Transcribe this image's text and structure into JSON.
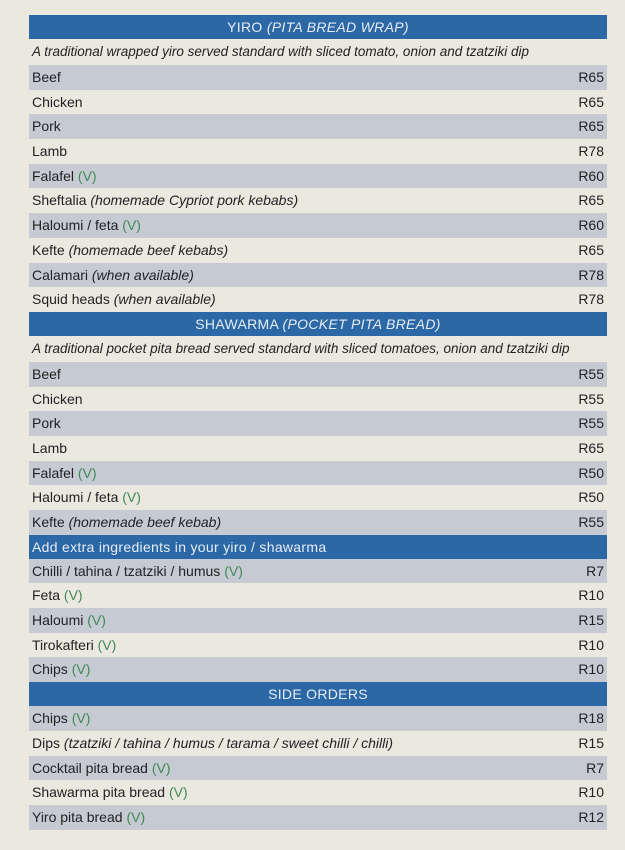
{
  "colors": {
    "header": "#2c68a6",
    "stripe": "#c6cad3",
    "veg": "#3f8a55",
    "background": "#ebe8e0"
  },
  "sections": [
    {
      "title": "YIRO",
      "title_note": "(PITA BREAD WRAP)",
      "align": "center",
      "description": "A traditional wrapped yiro served standard with sliced tomato, onion and tzatziki dip",
      "items": [
        {
          "name": "Beef",
          "price": "R65"
        },
        {
          "name": "Chicken",
          "price": "R65"
        },
        {
          "name": "Pork",
          "price": "R65"
        },
        {
          "name": "Lamb",
          "price": "R78"
        },
        {
          "name": "Falafel",
          "veg": "(V)",
          "price": "R60"
        },
        {
          "name": "Sheftalia",
          "note": "(homemade Cypriot pork kebabs)",
          "price": "R65"
        },
        {
          "name": "Haloumi / feta",
          "veg": "(V)",
          "price": "R60"
        },
        {
          "name": "Kefte",
          "note": "(homemade beef kebabs)",
          "price": "R65"
        },
        {
          "name": "Calamari",
          "note": "(when available)",
          "price": "R78"
        },
        {
          "name": "Squid heads",
          "note": "(when available)",
          "price": "R78"
        }
      ]
    },
    {
      "title": "SHAWARMA",
      "title_note": "(POCKET PITA BREAD)",
      "align": "center",
      "description": "A traditional pocket pita bread served standard with sliced tomatoes, onion and tzatziki dip",
      "items": [
        {
          "name": "Beef",
          "price": "R55"
        },
        {
          "name": "Chicken",
          "price": "R55"
        },
        {
          "name": "Pork",
          "price": "R55"
        },
        {
          "name": "Lamb",
          "price": "R65"
        },
        {
          "name": "Falafel",
          "veg": "(V)",
          "price": "R50"
        },
        {
          "name": "Haloumi / feta",
          "veg": "(V)",
          "price": "R50"
        },
        {
          "name": "Kefte",
          "note": "(homemade beef kebab)",
          "price": "R55"
        }
      ]
    },
    {
      "title": "Add extra ingredients in your yiro / shawarma",
      "align": "left",
      "items": [
        {
          "name": "Chilli / tahina / tzatziki / humus",
          "veg": "(V)",
          "price": "R7"
        },
        {
          "name": "Feta",
          "veg": "(V)",
          "price": "R10"
        },
        {
          "name": "Haloumi",
          "veg": "(V)",
          "price": "R15"
        },
        {
          "name": "Tirokafteri",
          "veg": "(V)",
          "price": "R10"
        },
        {
          "name": "Chips",
          "veg": "(V)",
          "price": "R10"
        }
      ]
    },
    {
      "title": "SIDE ORDERS",
      "align": "center",
      "items": [
        {
          "name": "Chips",
          "veg": "(V)",
          "price": "R18"
        },
        {
          "name": "Dips",
          "note": "(tzatziki / tahina / humus / tarama / sweet chilli / chilli)",
          "price": "R15"
        },
        {
          "name": "Cocktail pita bread",
          "veg": "(V)",
          "price": "R7"
        },
        {
          "name": "Shawarma pita bread",
          "veg": "(V)",
          "price": "R10"
        },
        {
          "name": "Yiro pita bread",
          "veg": "(V)",
          "price": "R12"
        }
      ]
    }
  ]
}
